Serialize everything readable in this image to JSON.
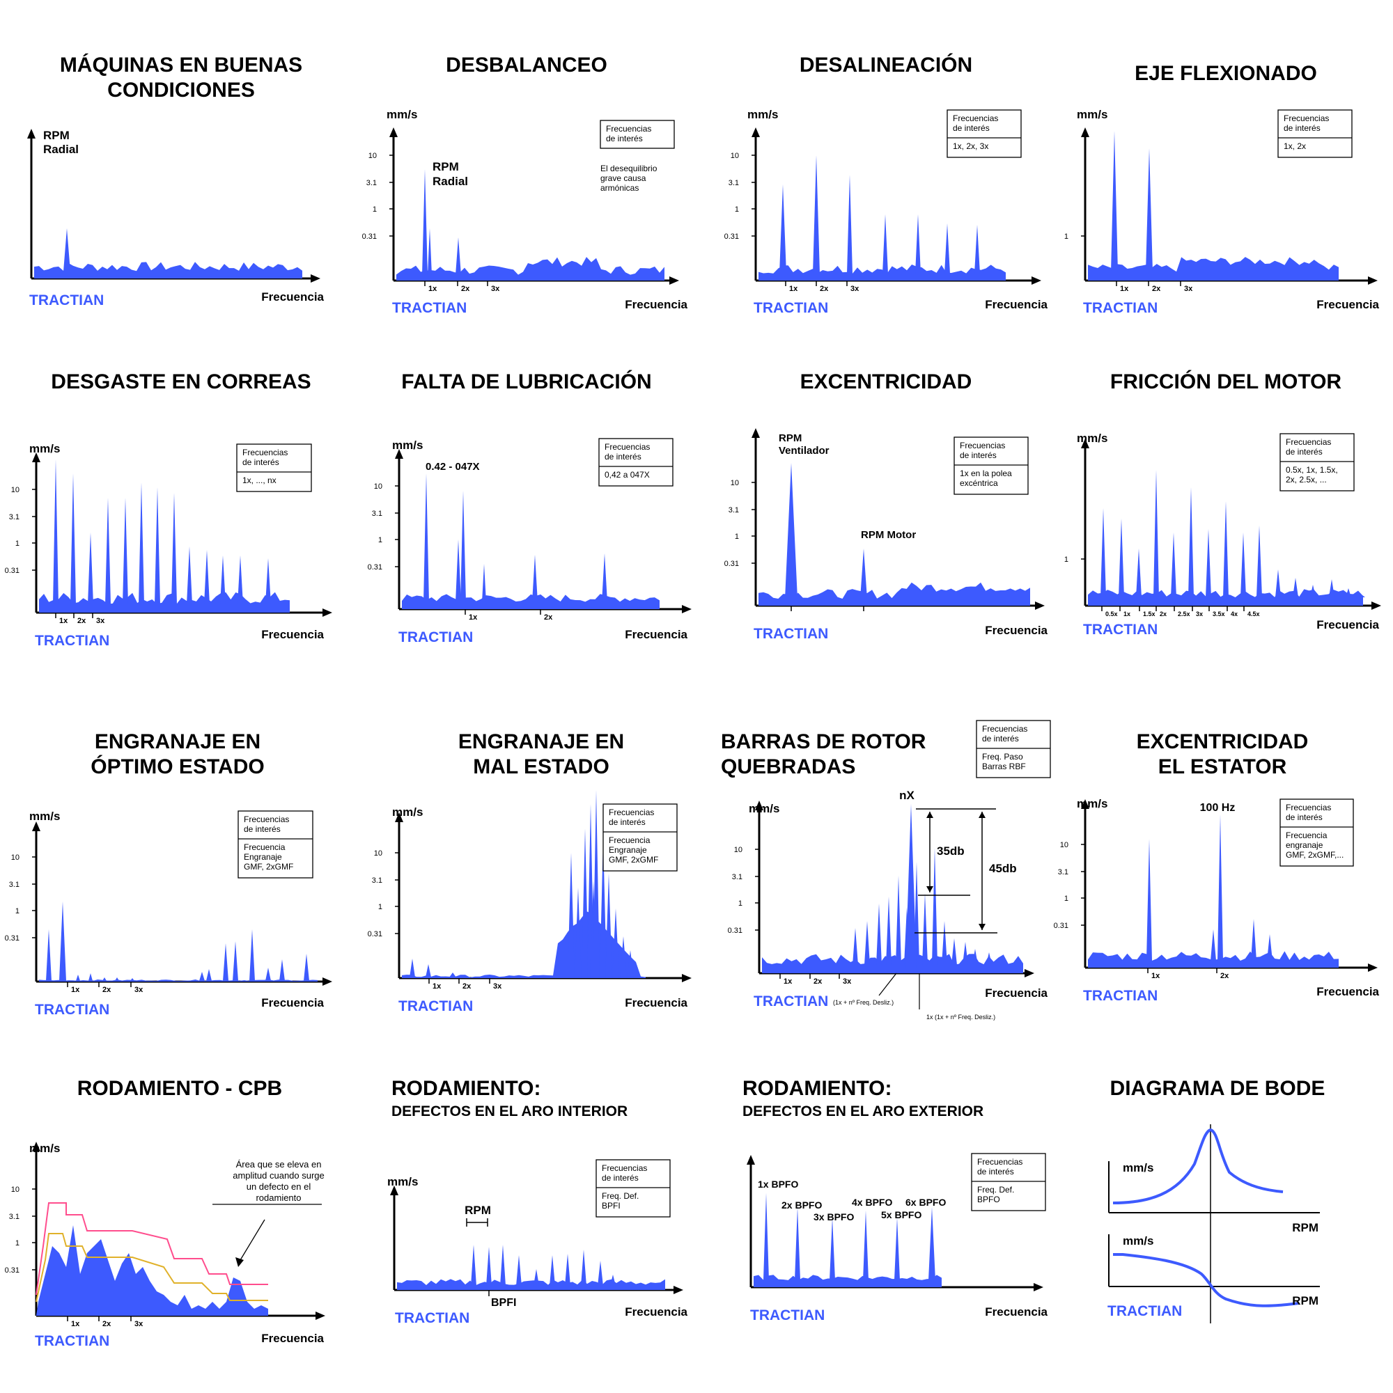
{
  "brand": "TRACTIAN",
  "colors": {
    "spectrum": "#3d5afe",
    "axis": "#000000",
    "pink": "#ff4d8d",
    "gold": "#e0b12a",
    "bode": "#3d5afe"
  },
  "common": {
    "frecuencia": "Frecuencia",
    "mms": "mm/s",
    "box_head_1": "Frecuencias",
    "box_head_2": "de interés"
  },
  "panels": [
    {
      "id": "buenas",
      "title": [
        "MÁQUINAS EN BUENAS",
        "CONDICIONES"
      ],
      "ylabel": [
        "RPM",
        "Radial"
      ],
      "yticks": [],
      "xticks": [],
      "box": null,
      "notes": []
    },
    {
      "id": "desbalanceo",
      "title": [
        "DESBALANCEO"
      ],
      "ylabel": [
        "mm/s"
      ],
      "yticks": [
        "10",
        "3.1",
        "1",
        "0.31"
      ],
      "xticks": [
        "1x",
        "2x",
        "3x"
      ],
      "box": {
        "body": []
      },
      "notes": [
        [
          "RPM",
          "Radial"
        ],
        [
          "El desequilibrio",
          "grave causa",
          "armónicas"
        ]
      ]
    },
    {
      "id": "desalineacion",
      "title": [
        "DESALINEACIÓN"
      ],
      "ylabel": [
        "mm/s"
      ],
      "yticks": [
        "10",
        "3.1",
        "1",
        "0.31"
      ],
      "xticks": [
        "1x",
        "2x",
        "3x"
      ],
      "box": {
        "body": [
          "1x, 2x, 3x"
        ]
      },
      "notes": []
    },
    {
      "id": "eje",
      "title": [
        "EJE FLEXIONADO"
      ],
      "ylabel": [
        "mm/s"
      ],
      "yticks": [
        "1"
      ],
      "xticks": [
        "1x",
        "2x",
        "3x"
      ],
      "box": {
        "body": [
          "1x, 2x"
        ]
      },
      "notes": []
    },
    {
      "id": "correas",
      "title": [
        "DESGASTE EN CORREAS"
      ],
      "ylabel": [
        "mm/s"
      ],
      "yticks": [
        "10",
        "3.1",
        "1",
        "0.31"
      ],
      "xticks": [
        "1x",
        "2x",
        "3x"
      ],
      "box": {
        "body": [
          "1x, ..., nx"
        ]
      },
      "notes": []
    },
    {
      "id": "lubricacion",
      "title": [
        "FALTA DE LUBRICACIÓN"
      ],
      "ylabel": [
        "mm/s"
      ],
      "yticks": [
        "10",
        "3.1",
        "1",
        "0.31"
      ],
      "xticks": [
        "1x",
        "2x"
      ],
      "box": {
        "body": [
          "0,42 a 047X"
        ]
      },
      "notes": [
        [
          "0.42 - 047X"
        ]
      ]
    },
    {
      "id": "excentricidad",
      "title": [
        "EXCENTRICIDAD"
      ],
      "ylabel": [
        "RPM",
        "Ventilador"
      ],
      "yticks": [
        "10",
        "3.1",
        "1",
        "0.31"
      ],
      "xticks": [],
      "box": {
        "body": [
          "1x en la polea",
          "excéntrica"
        ]
      },
      "notes": [
        [
          "RPM Motor"
        ]
      ]
    },
    {
      "id": "friccion",
      "title": [
        "FRICCIÓN DEL MOTOR"
      ],
      "ylabel": [
        "mm/s"
      ],
      "yticks": [
        "1"
      ],
      "xticks": [
        "0.5x",
        "1x",
        "1.5x",
        "2x",
        "2.5x",
        "3x",
        "3.5x",
        "4x",
        "4.5x"
      ],
      "box": {
        "body": [
          "0.5x, 1x, 1.5x,",
          "2x, 2.5x, ..."
        ]
      },
      "notes": []
    },
    {
      "id": "engr_optimo",
      "title": [
        "ENGRANAJE EN",
        "ÓPTIMO ESTADO"
      ],
      "ylabel": [
        "mm/s"
      ],
      "yticks": [
        "10",
        "3.1",
        "1",
        "0.31"
      ],
      "xticks": [
        "1x",
        "2x",
        "3x"
      ],
      "box": {
        "body": [
          "Frecuencia",
          "Engranaje",
          "GMF, 2xGMF"
        ]
      },
      "notes": []
    },
    {
      "id": "engr_mal",
      "title": [
        "ENGRANAJE EN",
        "MAL ESTADO"
      ],
      "ylabel": [
        "mm/s"
      ],
      "yticks": [
        "10",
        "3.1",
        "1",
        "0.31"
      ],
      "xticks": [
        "1x",
        "2x",
        "3x"
      ],
      "box": {
        "body": [
          "Frecuencia",
          "Engranaje",
          "GMF, 2xGMF"
        ]
      },
      "notes": []
    },
    {
      "id": "rotor",
      "title": [
        "BARRAS DE ROTOR",
        "QUEBRADAS"
      ],
      "ylabel": [
        "mm/s"
      ],
      "yticks": [
        "10",
        "3.1",
        "1",
        "0.31"
      ],
      "xticks": [
        "1x",
        "2x",
        "3x"
      ],
      "box": {
        "body": [
          "Freq. Paso",
          "Barras RBF"
        ]
      },
      "notes": [
        [
          "nX"
        ],
        [
          "35db"
        ],
        [
          "45db"
        ],
        [
          "(1x + nº Freq. Desliz.)"
        ],
        [
          "1x (1x + nº Freq. Desliz.)"
        ]
      ]
    },
    {
      "id": "estator",
      "title": [
        "EXCENTRICIDAD",
        "EL ESTATOR"
      ],
      "ylabel": [
        "mm/s"
      ],
      "yticks": [
        "10",
        "3.1",
        "1",
        "0.31"
      ],
      "xticks": [
        "1x",
        "2x"
      ],
      "box": {
        "body": [
          "Frecuencia",
          "engranaje",
          "GMF, 2xGMF,..."
        ]
      },
      "notes": [
        [
          "100 Hz"
        ]
      ]
    },
    {
      "id": "cpb",
      "title": [
        "RODAMIENTO - CPB"
      ],
      "ylabel": [
        "mm/s"
      ],
      "yticks": [
        "10",
        "3.1",
        "1",
        "0.31"
      ],
      "xticks": [
        "1x",
        "2x",
        "3x"
      ],
      "box": null,
      "notes": [
        [
          "Área que se eleva en",
          "amplitud cuando surge",
          "un defecto en el",
          "rodamiento"
        ]
      ]
    },
    {
      "id": "aro_int",
      "title": [
        "RODAMIENTO:",
        "DEFECTOS EN EL ARO INTERIOR"
      ],
      "ylabel": [
        "mm/s"
      ],
      "yticks": [],
      "xticks": [
        "BPFI"
      ],
      "box": {
        "body": [
          "Freq. Def.",
          "BPFI"
        ]
      },
      "notes": [
        [
          "RPM"
        ]
      ]
    },
    {
      "id": "aro_ext",
      "title": [
        "RODAMIENTO:",
        "DEFECTOS EN EL ARO EXTERIOR"
      ],
      "ylabel": [],
      "yticks": [],
      "xticks": [],
      "box": {
        "body": [
          "Freq. Def.",
          "BPFO"
        ]
      },
      "notes": [
        [
          "1x BPFO"
        ],
        [
          "2x BPFO"
        ],
        [
          "3x BPFO"
        ],
        [
          "4x BPFO"
        ],
        [
          "5x BPFO"
        ],
        [
          "6x BPFO"
        ]
      ]
    },
    {
      "id": "bode",
      "title": [
        "DIAGRAMA DE BODE"
      ],
      "ylabel": [
        "mm/s"
      ],
      "yticks": [],
      "xticks": [
        "RPM"
      ],
      "box": null,
      "notes": [
        [
          "mm/s"
        ],
        [
          "RPM"
        ]
      ]
    }
  ]
}
